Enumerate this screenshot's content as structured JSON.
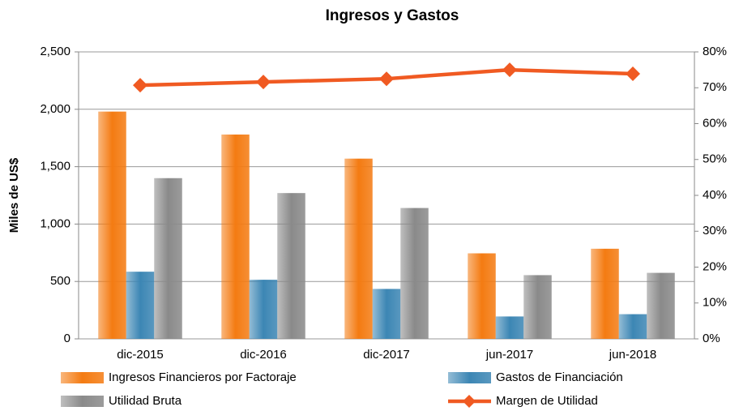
{
  "chart_data": {
    "type": "bar",
    "title": "Ingresos y Gastos",
    "y_label": "Miles de US$",
    "categories": [
      "dic-2015",
      "dic-2016",
      "dic-2017",
      "jun-2017",
      "jun-2018"
    ],
    "series": [
      {
        "name": "Ingresos Financieros por Factoraje",
        "color": "#f47b12",
        "values": [
          1980,
          1780,
          1570,
          745,
          785
        ]
      },
      {
        "name": "Gastos de Financiación",
        "color": "#3c86b4",
        "values": [
          585,
          515,
          435,
          195,
          215
        ]
      },
      {
        "name": "Utilidad Bruta",
        "color": "#8a8a8a",
        "values": [
          1400,
          1270,
          1140,
          555,
          575
        ]
      },
      {
        "name": "Margen de Utilidad",
        "color": "#f05a22",
        "type": "line",
        "axis": "y2",
        "values": [
          70.7,
          71.6,
          72.5,
          75.0,
          73.9
        ]
      }
    ],
    "ylim": [
      0,
      2500
    ],
    "yticks": [
      0,
      500,
      {
        "value": 1000,
        "label": "1,000"
      },
      {
        "value": 1500,
        "label": "1,500"
      },
      {
        "value": 2000,
        "label": "2,000"
      },
      {
        "value": 2500,
        "label": "2,500"
      }
    ],
    "y2lim": [
      0,
      80
    ],
    "y2ticks": [
      {
        "value": 0,
        "label": "0%"
      },
      {
        "value": 10,
        "label": "10%"
      },
      {
        "value": 20,
        "label": "20%"
      },
      {
        "value": 30,
        "label": "30%"
      },
      {
        "value": 40,
        "label": "40%"
      },
      {
        "value": 50,
        "label": "50%"
      },
      {
        "value": 60,
        "label": "60%"
      },
      {
        "value": 70,
        "label": "70%"
      },
      {
        "value": 80,
        "label": "80%"
      }
    ],
    "grid": true
  }
}
